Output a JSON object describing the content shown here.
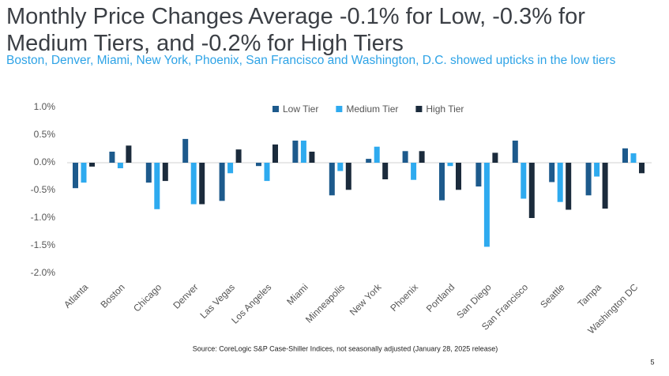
{
  "chart_data": {
    "type": "bar",
    "title": "Monthly Price Changes Average -0.1% for Low, -0.3% for Medium Tiers, and -0.2% for High Tiers",
    "subtitle": "Boston, Denver, Miami, New York, Phoenix, San Francisco and Washington, D.C. showed upticks in the low tiers",
    "categories": [
      "Atlanta",
      "Boston",
      "Chicago",
      "Denver",
      "Las Vegas",
      "Los Angeles",
      "Miami",
      "Minneapolis",
      "New York",
      "Phoenix",
      "Portland",
      "San Diego",
      "San Francisco",
      "Seattle",
      "Tampa",
      "Washington DC"
    ],
    "series": [
      {
        "name": "Low Tier",
        "color": "#1d5a8c",
        "values": [
          -0.46,
          0.2,
          -0.36,
          0.43,
          -0.69,
          -0.06,
          0.4,
          -0.59,
          0.07,
          0.21,
          -0.68,
          -0.43,
          0.4,
          -0.35,
          -0.59,
          0.26
        ]
      },
      {
        "name": "Medium Tier",
        "color": "#2eaaef",
        "values": [
          -0.36,
          -0.1,
          -0.84,
          -0.75,
          -0.19,
          -0.33,
          0.4,
          -0.15,
          0.29,
          -0.31,
          -0.06,
          -1.52,
          -0.65,
          -0.71,
          -0.25,
          0.17
        ]
      },
      {
        "name": "High Tier",
        "color": "#1b2b3c",
        "values": [
          -0.07,
          0.31,
          -0.33,
          -0.75,
          0.24,
          0.33,
          0.2,
          -0.49,
          -0.3,
          0.21,
          -0.49,
          0.18,
          -1.0,
          -0.85,
          -0.83,
          -0.19
        ]
      }
    ],
    "ylim": [
      -2.0,
      1.0
    ],
    "yticks": [
      {
        "value": 1.0,
        "label": "1.0%"
      },
      {
        "value": 0.5,
        "label": "0.5%"
      },
      {
        "value": 0.0,
        "label": "0.0%"
      },
      {
        "value": -0.5,
        "label": "-0.5%"
      },
      {
        "value": -1.0,
        "label": "-1.0%"
      },
      {
        "value": -1.5,
        "label": "-1.5%"
      },
      {
        "value": -2.0,
        "label": "-2.0%"
      }
    ],
    "grid": false,
    "legend": "top",
    "source": "Source: CoreLogic S&P Case-Shiller Indices, not seasonally adjusted (January 28, 2025 release)"
  },
  "page_number": "5"
}
